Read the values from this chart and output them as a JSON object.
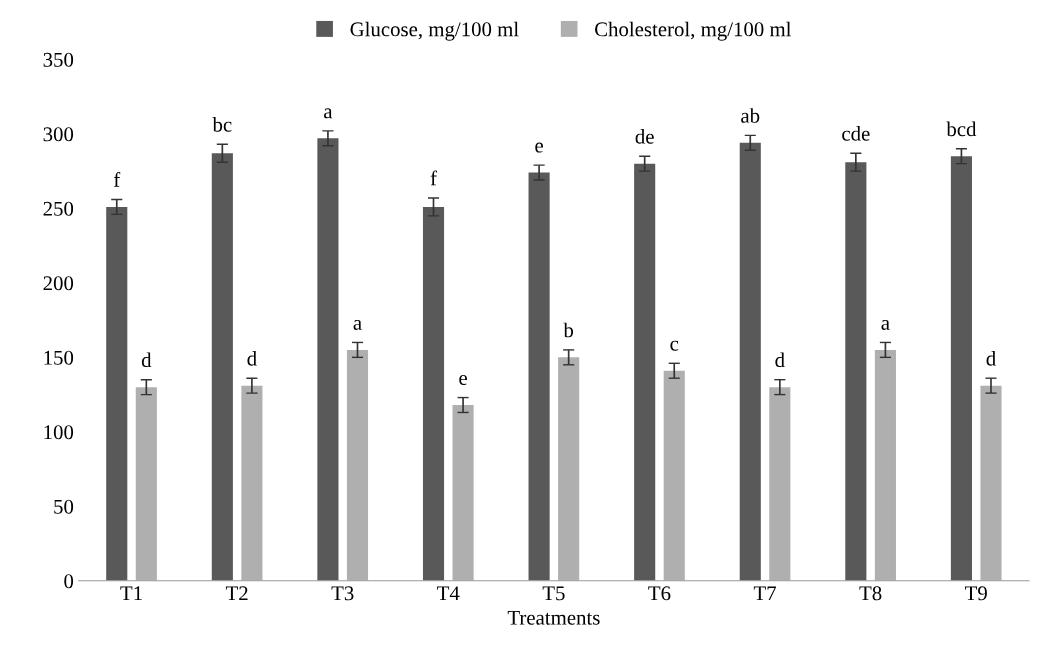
{
  "chart_data": {
    "type": "bar",
    "xlabel": "Treatments",
    "categories": [
      "T1",
      "T2",
      "T3",
      "T4",
      "T5",
      "T6",
      "T7",
      "T8",
      "T9"
    ],
    "series": [
      {
        "name": "Glucose, mg/100 ml",
        "color": "#595959",
        "values": [
          251,
          287,
          297,
          251,
          274,
          280,
          294,
          281,
          285
        ],
        "errors": [
          5,
          6,
          5,
          6,
          5,
          5,
          5,
          6,
          5
        ]
      },
      {
        "name": "Cholesterol, mg/100 ml",
        "color": "#afafaf",
        "values": [
          130,
          131,
          155,
          118,
          150,
          141,
          130,
          155,
          131
        ],
        "errors": [
          5,
          5,
          5,
          5,
          5,
          5,
          5,
          5,
          5
        ]
      }
    ],
    "annotations": [
      {
        "text": "f",
        "x": "T1",
        "y": 251
      },
      {
        "text": "bc",
        "x": "T2",
        "y": 287
      },
      {
        "text": "a",
        "x": "T3",
        "y": 297
      },
      {
        "text": "f",
        "x": "T4",
        "y": 251
      },
      {
        "text": "e",
        "x": "T5",
        "y": 274
      },
      {
        "text": "de",
        "x": "T6",
        "y": 280
      },
      {
        "text": "ab",
        "x": "T7",
        "y": 294
      },
      {
        "text": "cde",
        "x": "T8",
        "y": 281
      },
      {
        "text": "bcd",
        "x": "T9",
        "y": 285
      },
      {
        "text": "d",
        "x": "T1",
        "y": 130
      },
      {
        "text": "d",
        "x": "T2",
        "y": 131
      },
      {
        "text": "a",
        "x": "T3",
        "y": 155
      },
      {
        "text": "e",
        "x": "T4",
        "y": 118
      },
      {
        "text": "b",
        "x": "T5",
        "y": 150
      },
      {
        "text": "c",
        "x": "T6",
        "y": 141
      },
      {
        "text": "d",
        "x": "T7",
        "y": 130
      },
      {
        "text": "a",
        "x": "T8",
        "y": 155
      },
      {
        "text": "d",
        "x": "T9",
        "y": 131
      }
    ],
    "ylim": [
      0,
      350
    ],
    "yticks": [
      0,
      50,
      100,
      150,
      200,
      250,
      300,
      350
    ],
    "grid": false,
    "legend": "top"
  }
}
